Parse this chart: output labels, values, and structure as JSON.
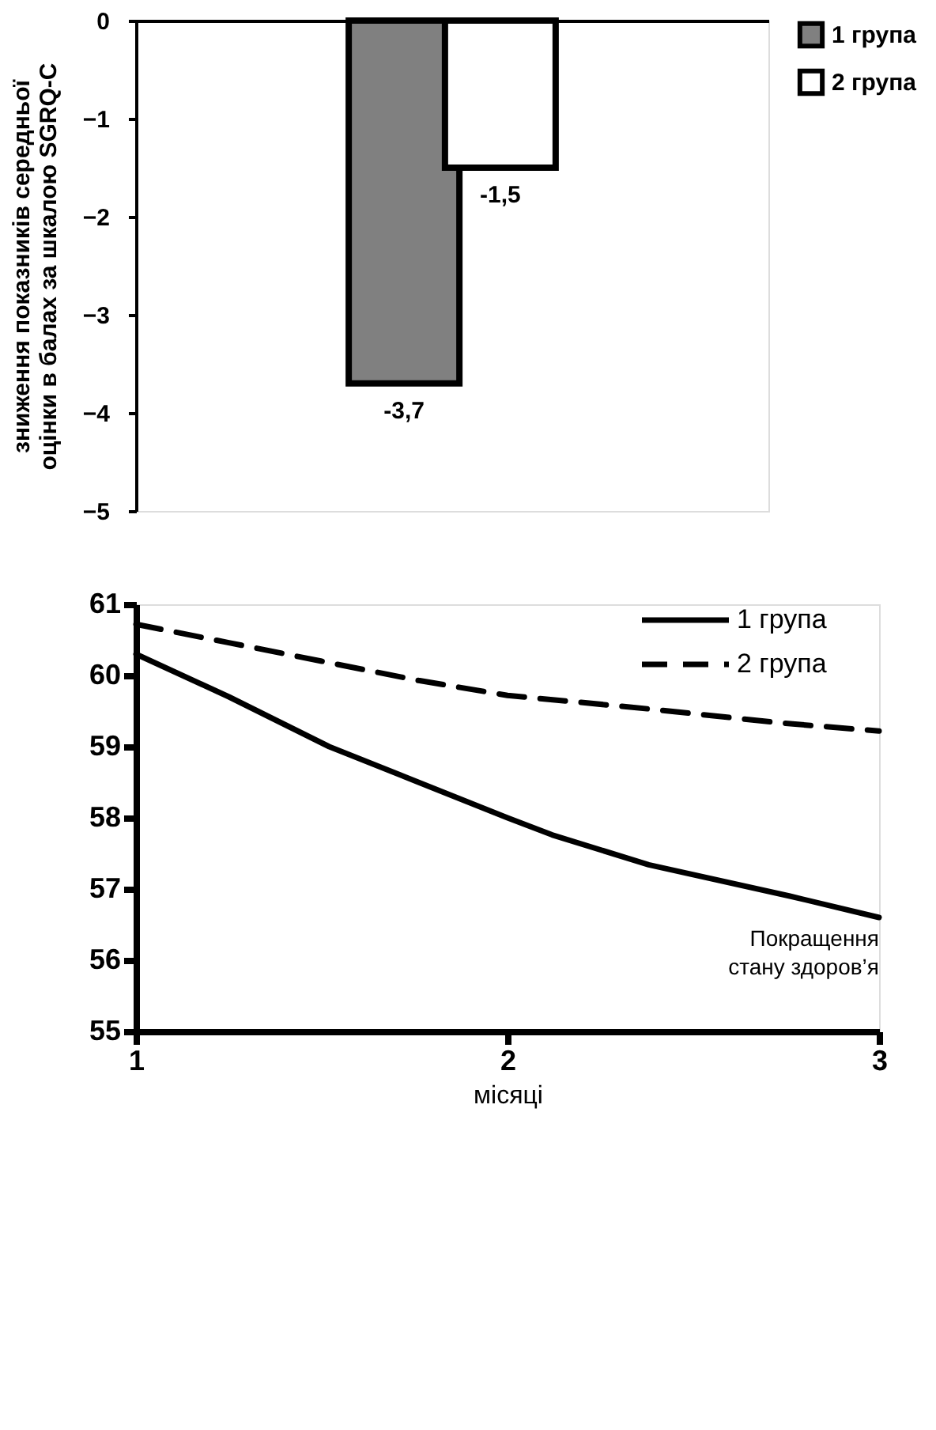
{
  "chart_data": [
    {
      "type": "bar",
      "ylabel": "зниження показників середньої оцінки в балах за шкалою SGRQ-C",
      "categories": [
        null
      ],
      "series": [
        {
          "name": "1 група",
          "color": "#808080",
          "values": [
            -3.7
          ],
          "value_labels": [
            "-3,7"
          ]
        },
        {
          "name": "2 група",
          "color": "#ffffff",
          "values": [
            -1.5
          ],
          "value_labels": [
            "-1,5"
          ]
        }
      ],
      "ylim": [
        -5,
        0
      ],
      "yticks": [
        -5,
        -4,
        -3,
        -2,
        -1,
        0
      ],
      "grid": false,
      "legend": "right"
    },
    {
      "type": "line",
      "xlabel": "місяці",
      "annotations": [
        "Покращення стану здоров’я"
      ],
      "series": [
        {
          "name": "1 група",
          "color": "#000000",
          "line_style": "solid",
          "x": [
            1,
            1.25,
            1.52,
            1.76,
            2,
            2.12,
            2.38,
            2.76,
            3
          ],
          "values": [
            60.3,
            59.7,
            59.0,
            58.5,
            58.0,
            57.76,
            57.34,
            56.9,
            56.6
          ]
        },
        {
          "name": "2 група",
          "color": "#000000",
          "line_style": "dashed",
          "x": [
            1,
            1.25,
            1.5,
            1.76,
            2,
            2.38,
            2.74,
            3
          ],
          "values": [
            60.72,
            60.46,
            60.2,
            59.93,
            59.72,
            59.53,
            59.33,
            59.22
          ]
        }
      ],
      "xlim": [
        1,
        3
      ],
      "xticks": [
        1,
        2,
        3
      ],
      "ylim": [
        55,
        61
      ],
      "yticks": [
        55,
        56,
        57,
        58,
        59,
        60,
        61
      ],
      "grid": false,
      "legend": "top right",
      "marker": "none"
    }
  ]
}
